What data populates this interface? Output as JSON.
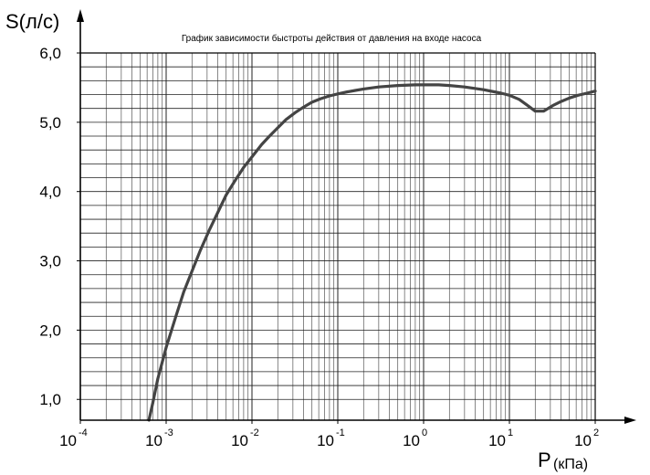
{
  "chart_data": {
    "type": "line",
    "title": "График зависимости быстроты действия от давления на входе насоса",
    "ylabel": "S(л/с)",
    "xlabel": "P",
    "xlabel_unit": "(кПа)",
    "xscale": "log",
    "xlim": [
      0.0001,
      100
    ],
    "ylim": [
      0.7,
      6.0
    ],
    "grid": true,
    "yticks": [
      {
        "value": 1.0,
        "label": "1,0"
      },
      {
        "value": 2.0,
        "label": "2,0"
      },
      {
        "value": 3.0,
        "label": "3,0"
      },
      {
        "value": 4.0,
        "label": "4,0"
      },
      {
        "value": 5.0,
        "label": "5,0"
      },
      {
        "value": 6.0,
        "label": "6,0"
      }
    ],
    "xticks": [
      {
        "value": 0.0001,
        "base": "10",
        "exp": "-4"
      },
      {
        "value": 0.001,
        "base": "10",
        "exp": "-3"
      },
      {
        "value": 0.01,
        "base": "10",
        "exp": "-2"
      },
      {
        "value": 0.1,
        "base": "10",
        "exp": "-1"
      },
      {
        "value": 1,
        "base": "10",
        "exp": "0"
      },
      {
        "value": 10,
        "base": "10",
        "exp": "1"
      },
      {
        "value": 100,
        "base": "10",
        "exp": "2"
      }
    ],
    "series": [
      {
        "x": [
          0.00063,
          0.0007,
          0.0008,
          0.001,
          0.0013,
          0.0016,
          0.002,
          0.0025,
          0.0032,
          0.004,
          0.005,
          0.0063,
          0.008,
          0.01,
          0.013,
          0.016,
          0.02,
          0.025,
          0.032,
          0.04,
          0.05,
          0.063,
          0.08,
          0.1,
          0.13,
          0.16,
          0.2,
          0.3,
          0.5,
          0.8,
          1,
          1.5,
          2,
          3,
          5,
          8,
          10,
          13,
          16,
          20,
          25,
          32,
          40,
          50,
          63,
          80,
          100
        ],
        "y": [
          0.7,
          0.95,
          1.3,
          1.75,
          2.2,
          2.55,
          2.85,
          3.15,
          3.45,
          3.7,
          3.95,
          4.15,
          4.35,
          4.5,
          4.68,
          4.8,
          4.92,
          5.04,
          5.14,
          5.22,
          5.29,
          5.34,
          5.38,
          5.41,
          5.44,
          5.46,
          5.48,
          5.51,
          5.53,
          5.54,
          5.54,
          5.54,
          5.53,
          5.51,
          5.47,
          5.42,
          5.39,
          5.33,
          5.25,
          5.16,
          5.16,
          5.24,
          5.3,
          5.35,
          5.39,
          5.42,
          5.45
        ],
        "color": "#444444"
      }
    ]
  }
}
